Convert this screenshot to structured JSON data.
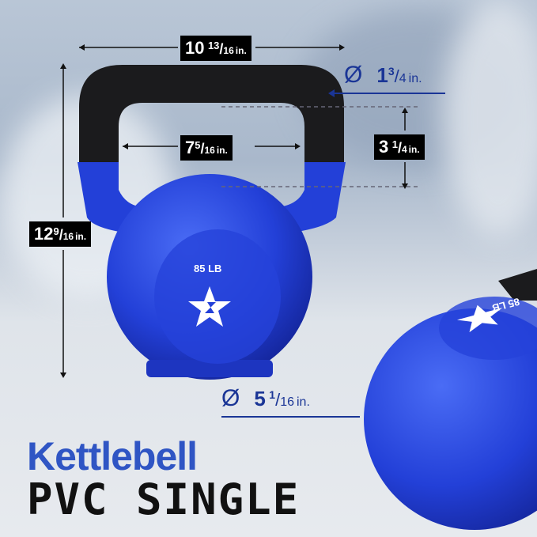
{
  "product": {
    "weight_label": "85 LB",
    "title_line1": "Kettlebell",
    "title_line2": "PVC SINGLE"
  },
  "dimensions": {
    "overall_width": {
      "whole": "10",
      "num": "13",
      "den": "16",
      "unit": "in."
    },
    "handle_diameter": {
      "symbol": "Ø",
      "whole": "1",
      "num": "3",
      "den": "4",
      "unit": "in."
    },
    "handle_inner_width": {
      "whole": "7",
      "num": "5",
      "den": "16",
      "unit": "in."
    },
    "handle_clearance": {
      "whole": "3",
      "num": "1",
      "den": "4",
      "unit": "in."
    },
    "overall_height": {
      "whole": "12",
      "num": "9",
      "den": "16",
      "unit": "in."
    },
    "base_diameter": {
      "symbol": "Ø",
      "whole": "5",
      "num": "1",
      "den": "16",
      "unit": "in."
    }
  },
  "colors": {
    "kettlebell_blue": "#2340d8",
    "handle_black": "#1a1a1a",
    "label_blue": "#1a3596",
    "title_blue": "#2f55c4"
  },
  "icons": [
    "diameter-icon",
    "star-logo-icon"
  ]
}
